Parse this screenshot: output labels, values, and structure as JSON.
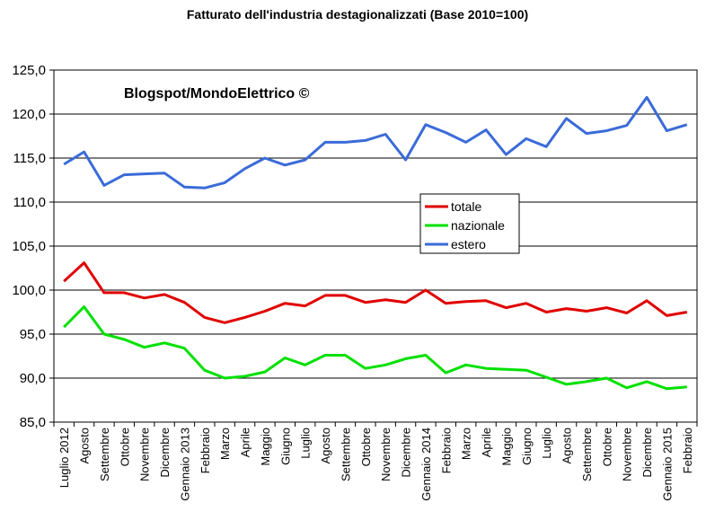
{
  "chart_data": {
    "type": "line",
    "title": "Fatturato dell'industria destagionalizzati    (Base 2010=100)",
    "watermark": "Blogspot/MondoElettrico ©",
    "ylim": [
      85,
      125
    ],
    "yticks": [
      85,
      90,
      95,
      100,
      105,
      110,
      115,
      120,
      125
    ],
    "ytick_labels": [
      "85,0",
      "90,0",
      "95,0",
      "100,0",
      "105,0",
      "110,0",
      "115,0",
      "120,0",
      "125,0"
    ],
    "grid": "horizontal",
    "legend_position": "center-right",
    "categories": [
      "Luglio 2012",
      "Agosto",
      "Settembre",
      "Ottobre",
      "Novembre",
      "Dicembre",
      "Gennaio 2013",
      "Febbraio",
      "Marzo",
      "Aprile",
      "Maggio",
      "Giugno",
      "Luglio",
      "Agosto",
      "Settembre",
      "Ottobre",
      "Novembre",
      "Dicembre",
      "Gennaio 2014",
      "Febbraio",
      "Marzo",
      "Aprile",
      "Maggio",
      "Giugno",
      "Luglio",
      "Agosto",
      "Settembre",
      "Ottobre",
      "Novembre",
      "Dicembre",
      "Gennaio 2015",
      "Febbraio"
    ],
    "series": [
      {
        "name": "totale",
        "color": "#e00000",
        "values": [
          101.0,
          103.1,
          99.7,
          99.7,
          99.1,
          99.5,
          98.6,
          96.9,
          96.3,
          96.9,
          97.6,
          98.5,
          98.2,
          99.4,
          99.4,
          98.6,
          98.9,
          98.6,
          100.0,
          98.5,
          98.7,
          98.8,
          98.0,
          98.5,
          97.5,
          97.9,
          97.6,
          98.0,
          97.4,
          98.8,
          97.1,
          97.5
        ]
      },
      {
        "name": "nazionale",
        "color": "#00e000",
        "values": [
          95.8,
          98.1,
          95.0,
          94.4,
          93.5,
          94.0,
          93.4,
          90.9,
          90.0,
          90.2,
          90.7,
          92.3,
          91.5,
          92.6,
          92.6,
          91.1,
          91.5,
          92.2,
          92.6,
          90.6,
          91.5,
          91.1,
          91.0,
          90.9,
          90.1,
          89.3,
          89.6,
          90.0,
          88.9,
          89.6,
          88.8,
          89.0
        ]
      },
      {
        "name": "estero",
        "color": "#3a6bd8",
        "values": [
          114.3,
          115.7,
          111.9,
          113.1,
          113.2,
          113.3,
          111.7,
          111.6,
          112.2,
          113.8,
          115.0,
          114.2,
          114.8,
          116.8,
          116.8,
          117.0,
          117.7,
          114.8,
          118.8,
          117.9,
          116.8,
          118.2,
          115.4,
          117.2,
          116.3,
          119.5,
          117.8,
          118.1,
          118.7,
          121.9,
          118.1,
          118.8
        ]
      }
    ]
  }
}
